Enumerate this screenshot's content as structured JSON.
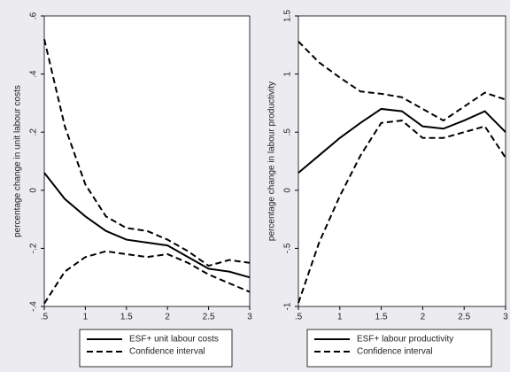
{
  "chart_data": [
    {
      "type": "line",
      "ylabel": "percentage change in unit labour costs",
      "x": [
        0.5,
        0.75,
        1,
        1.25,
        1.5,
        1.75,
        2,
        2.25,
        2.5,
        2.75,
        3
      ],
      "series": [
        {
          "name": "ESF+ unit labour costs",
          "color": "#000000",
          "dash": "solid",
          "values": [
            0.06,
            -0.03,
            -0.09,
            -0.14,
            -0.17,
            -0.18,
            -0.19,
            -0.23,
            -0.27,
            -0.28,
            -0.3
          ]
        },
        {
          "name": "Confidence interval",
          "color": "#000000",
          "dash": "dashed",
          "values": [
            0.52,
            0.22,
            0.02,
            -0.09,
            -0.13,
            -0.14,
            -0.17,
            -0.21,
            -0.26,
            -0.24,
            -0.25
          ]
        },
        {
          "color": "#000000",
          "dash": "dashed",
          "values": [
            -0.39,
            -0.28,
            -0.23,
            -0.21,
            -0.22,
            -0.23,
            -0.22,
            -0.25,
            -0.29,
            -0.32,
            -0.35
          ]
        }
      ],
      "xlim": [
        0.5,
        3
      ],
      "xticks": [
        {
          "value": 0.5,
          "label": ".5"
        },
        1,
        1.5,
        2,
        2.5,
        3
      ],
      "ylim": [
        -0.4,
        0.6
      ],
      "yticks": [
        {
          "value": -0.4,
          "label": "-.4"
        },
        {
          "value": -0.2,
          "label": "-.2"
        },
        0,
        {
          "value": 0.2,
          "label": ".2"
        },
        {
          "value": 0.4,
          "label": ".4"
        },
        {
          "value": 0.6,
          "label": ".6"
        }
      ],
      "legend": "bottom"
    },
    {
      "type": "line",
      "ylabel": "percentage change in labour productivity",
      "x": [
        0.5,
        0.75,
        1,
        1.25,
        1.5,
        1.75,
        2,
        2.25,
        2.5,
        2.75,
        3
      ],
      "series": [
        {
          "name": "ESF+ labour productivity",
          "color": "#000000",
          "dash": "solid",
          "values": [
            0.15,
            0.3,
            0.45,
            0.58,
            0.7,
            0.68,
            0.55,
            0.53,
            0.6,
            0.68,
            0.5
          ]
        },
        {
          "name": "Confidence interval",
          "color": "#000000",
          "dash": "dashed",
          "values": [
            1.28,
            1.1,
            0.97,
            0.85,
            0.83,
            0.8,
            0.7,
            0.6,
            0.72,
            0.84,
            0.78
          ]
        },
        {
          "color": "#000000",
          "dash": "dashed",
          "values": [
            -0.97,
            -0.45,
            -0.05,
            0.3,
            0.58,
            0.6,
            0.45,
            0.45,
            0.5,
            0.55,
            0.28
          ]
        }
      ],
      "xlim": [
        0.5,
        3
      ],
      "xticks": [
        {
          "value": 0.5,
          "label": ".5"
        },
        1,
        1.5,
        2,
        2.5,
        3
      ],
      "ylim": [
        -1,
        1.5
      ],
      "yticks": [
        -1,
        {
          "value": -0.5,
          "label": "-.5"
        },
        0,
        {
          "value": 0.5,
          "label": ".5"
        },
        1,
        1.5
      ],
      "legend": "bottom"
    }
  ]
}
